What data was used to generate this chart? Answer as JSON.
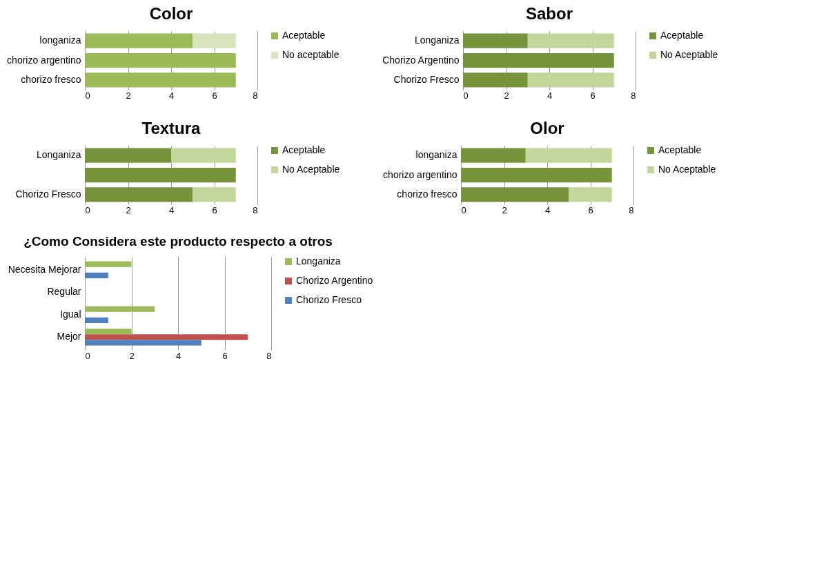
{
  "chart_data": [
    {
      "type": "bar",
      "title": "Color",
      "orientation": "horizontal",
      "stacked": true,
      "categories": [
        "longaniza",
        "chorizo argentino",
        "chorizo fresco"
      ],
      "series": [
        {
          "name": "Aceptable",
          "color": "#9bbb59",
          "values": [
            5,
            7,
            7
          ]
        },
        {
          "name": "No aceptable",
          "color": "#d7e4bd",
          "values": [
            2,
            0,
            0
          ]
        }
      ],
      "xlim": [
        0,
        8
      ],
      "xticks": [
        0,
        2,
        4,
        6,
        8
      ],
      "grid": "x",
      "legend": "right"
    },
    {
      "type": "bar",
      "title": "Sabor",
      "orientation": "horizontal",
      "stacked": true,
      "categories": [
        "Longaniza",
        "Chorizo Argentino",
        "Chorizo Fresco"
      ],
      "series": [
        {
          "name": "Aceptable",
          "color": "#77933c",
          "values": [
            3,
            7,
            3
          ]
        },
        {
          "name": "No Aceptable",
          "color": "#c3d69b",
          "values": [
            4,
            0,
            4
          ]
        }
      ],
      "xlim": [
        0,
        8
      ],
      "xticks": [
        0,
        2,
        4,
        6,
        8
      ],
      "grid": "x",
      "legend": "right"
    },
    {
      "type": "bar",
      "title": "Textura",
      "orientation": "horizontal",
      "stacked": true,
      "categories": [
        "Longaniza",
        null,
        "Chorizo Fresco"
      ],
      "series": [
        {
          "name": "Aceptable",
          "color": "#77933c",
          "values": [
            4,
            7,
            5
          ]
        },
        {
          "name": "No Aceptable",
          "color": "#c3d69b",
          "values": [
            3,
            0,
            2
          ]
        }
      ],
      "xlim": [
        0,
        8
      ],
      "xticks": [
        0,
        2,
        4,
        6,
        8
      ],
      "grid": "x",
      "legend": "right"
    },
    {
      "type": "bar",
      "title": "Olor",
      "orientation": "horizontal",
      "stacked": true,
      "categories": [
        "longaniza",
        "chorizo argentino",
        "chorizo fresco"
      ],
      "series": [
        {
          "name": "Aceptable",
          "color": "#77933c",
          "values": [
            3,
            7,
            5
          ]
        },
        {
          "name": "No Aceptable",
          "color": "#c3d69b",
          "values": [
            4,
            0,
            2
          ]
        }
      ],
      "xlim": [
        0,
        8
      ],
      "xticks": [
        0,
        2,
        4,
        6,
        8
      ],
      "grid": "x",
      "legend": "right"
    },
    {
      "type": "bar",
      "title": "¿Como Considera este producto respecto a otros",
      "orientation": "horizontal",
      "categories": [
        "Necesita Mejorar",
        "Regular",
        "Igual",
        "Mejor"
      ],
      "series": [
        {
          "name": "Longaniza",
          "color": "#9bbb59",
          "values": [
            2,
            0,
            3,
            2
          ]
        },
        {
          "name": "Chorizo Argentino",
          "color": "#c0504d",
          "values": [
            0,
            0,
            0,
            7
          ]
        },
        {
          "name": "Chorizo Fresco",
          "color": "#4f81bd",
          "values": [
            1,
            0,
            1,
            5
          ]
        }
      ],
      "xlim": [
        0,
        8
      ],
      "xticks": [
        0,
        2,
        4,
        6,
        8
      ],
      "grid": "x",
      "legend": "right"
    }
  ]
}
